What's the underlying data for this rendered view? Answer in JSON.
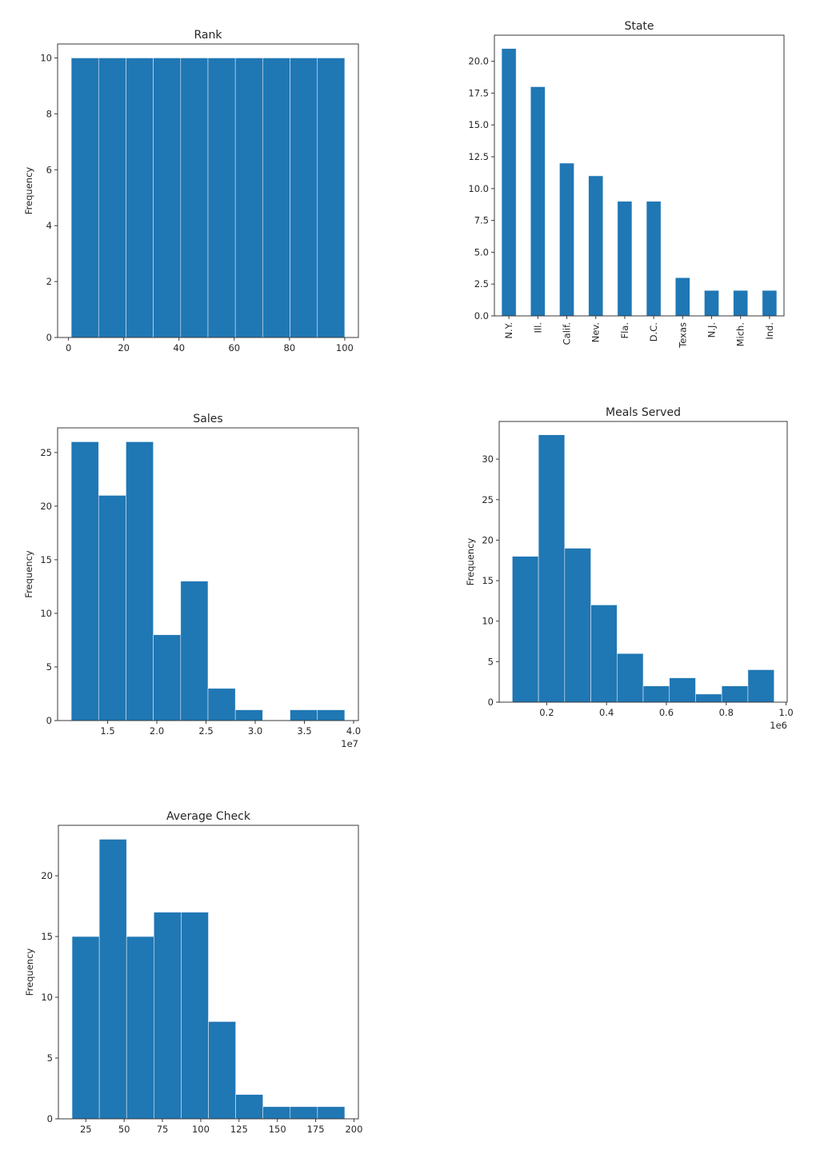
{
  "colors": {
    "bar": "#1f77b4"
  },
  "chart_data": [
    {
      "id": "rank",
      "type": "bar",
      "subtype": "histogram",
      "title": "Rank",
      "xlabel": "",
      "ylabel": "Frequency",
      "bin_edges": [
        1,
        10.9,
        20.8,
        30.7,
        40.6,
        50.5,
        60.4,
        70.3,
        80.2,
        90.1,
        100
      ],
      "values": [
        10,
        10,
        10,
        10,
        10,
        10,
        10,
        10,
        10,
        10
      ],
      "xlim": [
        -3.95,
        104.95
      ],
      "ylim": [
        0,
        10.5
      ],
      "xticks": [
        0,
        20,
        40,
        60,
        80,
        100
      ],
      "xtick_labels": [
        "0",
        "20",
        "40",
        "60",
        "80",
        "100"
      ],
      "yticks": [
        0,
        2,
        4,
        6,
        8,
        10
      ],
      "ytick_labels": [
        "0",
        "2",
        "4",
        "6",
        "8",
        "10"
      ],
      "x_offset_label": ""
    },
    {
      "id": "state",
      "type": "bar",
      "title": "State",
      "xlabel": "",
      "ylabel": "",
      "categories": [
        "N.Y.",
        "Ill.",
        "Calif.",
        "Nev.",
        "Fla.",
        "D.C.",
        "Texas",
        "N.J.",
        "Mich.",
        "Ind."
      ],
      "values": [
        21,
        18,
        12,
        11,
        9,
        9,
        3,
        2,
        2,
        2
      ],
      "ylim": [
        0,
        22.05
      ],
      "yticks": [
        0,
        2.5,
        5,
        7.5,
        10,
        12.5,
        15,
        17.5,
        20
      ],
      "ytick_labels": [
        "0.0",
        "2.5",
        "5.0",
        "7.5",
        "10.0",
        "12.5",
        "15.0",
        "17.5",
        "20.0"
      ]
    },
    {
      "id": "sales",
      "type": "bar",
      "subtype": "histogram",
      "title": "Sales",
      "xlabel": "",
      "ylabel": "Frequency",
      "bin_edges": [
        11300000,
        14080000,
        16860000,
        19640000,
        22420000,
        25200000,
        27980000,
        30760000,
        33540000,
        36320000,
        39100000
      ],
      "values": [
        26,
        21,
        26,
        8,
        13,
        3,
        1,
        0,
        1,
        1
      ],
      "xlim": [
        9910000,
        40490000
      ],
      "ylim": [
        0,
        27.3
      ],
      "xticks": [
        15000000,
        20000000,
        25000000,
        30000000,
        35000000,
        40000000
      ],
      "xtick_labels": [
        "1.5",
        "2.0",
        "2.5",
        "3.0",
        "3.5",
        "4.0"
      ],
      "yticks": [
        0,
        5,
        10,
        15,
        20,
        25
      ],
      "ytick_labels": [
        "0",
        "5",
        "10",
        "15",
        "20",
        "25"
      ],
      "x_offset_label": "1e7"
    },
    {
      "id": "meals",
      "type": "bar",
      "subtype": "histogram",
      "title": "Meals Served",
      "xlabel": "",
      "ylabel": "Frequency",
      "bin_edges": [
        85000,
        172500,
        260000,
        347500,
        435000,
        522500,
        610000,
        697500,
        785000,
        872500,
        960000
      ],
      "values": [
        18,
        33,
        19,
        12,
        6,
        2,
        3,
        1,
        2,
        4
      ],
      "xlim": [
        41250,
        1003750
      ],
      "ylim": [
        0,
        34.65
      ],
      "xticks": [
        200000,
        400000,
        600000,
        800000,
        1000000
      ],
      "xtick_labels": [
        "0.2",
        "0.4",
        "0.6",
        "0.8",
        "1.0"
      ],
      "yticks": [
        0,
        5,
        10,
        15,
        20,
        25,
        30
      ],
      "ytick_labels": [
        "0",
        "5",
        "10",
        "15",
        "20",
        "25",
        "30"
      ],
      "x_offset_label": "1e6"
    },
    {
      "id": "avgcheck",
      "type": "bar",
      "subtype": "histogram",
      "title": "Average Check",
      "xlabel": "",
      "ylabel": "Frequency",
      "bin_edges": [
        16,
        33.8,
        51.6,
        69.4,
        87.2,
        105,
        122.8,
        140.6,
        158.4,
        176.2,
        194
      ],
      "values": [
        15,
        23,
        15,
        17,
        17,
        8,
        2,
        1,
        1,
        1
      ],
      "xlim": [
        7.1,
        202.9
      ],
      "ylim": [
        0,
        24.15
      ],
      "xticks": [
        25,
        50,
        75,
        100,
        125,
        150,
        175,
        200
      ],
      "xtick_labels": [
        "25",
        "50",
        "75",
        "100",
        "125",
        "150",
        "175",
        "200"
      ],
      "yticks": [
        0,
        5,
        10,
        15,
        20
      ],
      "ytick_labels": [
        "0",
        "5",
        "10",
        "15",
        "20"
      ],
      "x_offset_label": ""
    }
  ]
}
